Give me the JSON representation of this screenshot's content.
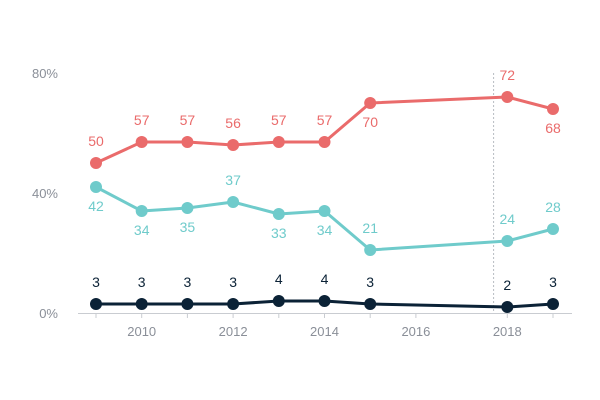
{
  "chart_data": {
    "type": "line",
    "x": [
      2009,
      2010,
      2011,
      2012,
      2013,
      2014,
      2015,
      2018,
      2019
    ],
    "xlim": [
      2008.5,
      2019.5
    ],
    "x_ticks": [
      2010,
      2012,
      2014,
      2016,
      2018
    ],
    "x_tick_labels": [
      "2010",
      "2012",
      "2014",
      "2016",
      "2018"
    ],
    "ylim": [
      0,
      80
    ],
    "y_ticks": [
      0,
      40,
      80
    ],
    "y_tick_labels": [
      "0%",
      "40%",
      "80%"
    ],
    "reference_line_x": 2017.7,
    "series": [
      {
        "color": "#ea6b6b",
        "values": [
          50,
          57,
          57,
          56,
          57,
          57,
          70,
          72,
          68
        ],
        "labels": [
          "50",
          "57",
          "57",
          "56",
          "57",
          "57",
          "70",
          "72",
          "68"
        ]
      },
      {
        "color": "#6fcbcb",
        "values": [
          42,
          34,
          35,
          37,
          33,
          34,
          21,
          24,
          28
        ],
        "labels": [
          "42",
          "34",
          "35",
          "37",
          "33",
          "34",
          "21",
          "24",
          "28"
        ]
      },
      {
        "color": "#0b2236",
        "values": [
          3,
          3,
          3,
          3,
          4,
          4,
          3,
          2,
          3
        ],
        "labels": [
          "3",
          "3",
          "3",
          "3",
          "4",
          "4",
          "3",
          "2",
          "3"
        ]
      }
    ],
    "grid": false
  }
}
